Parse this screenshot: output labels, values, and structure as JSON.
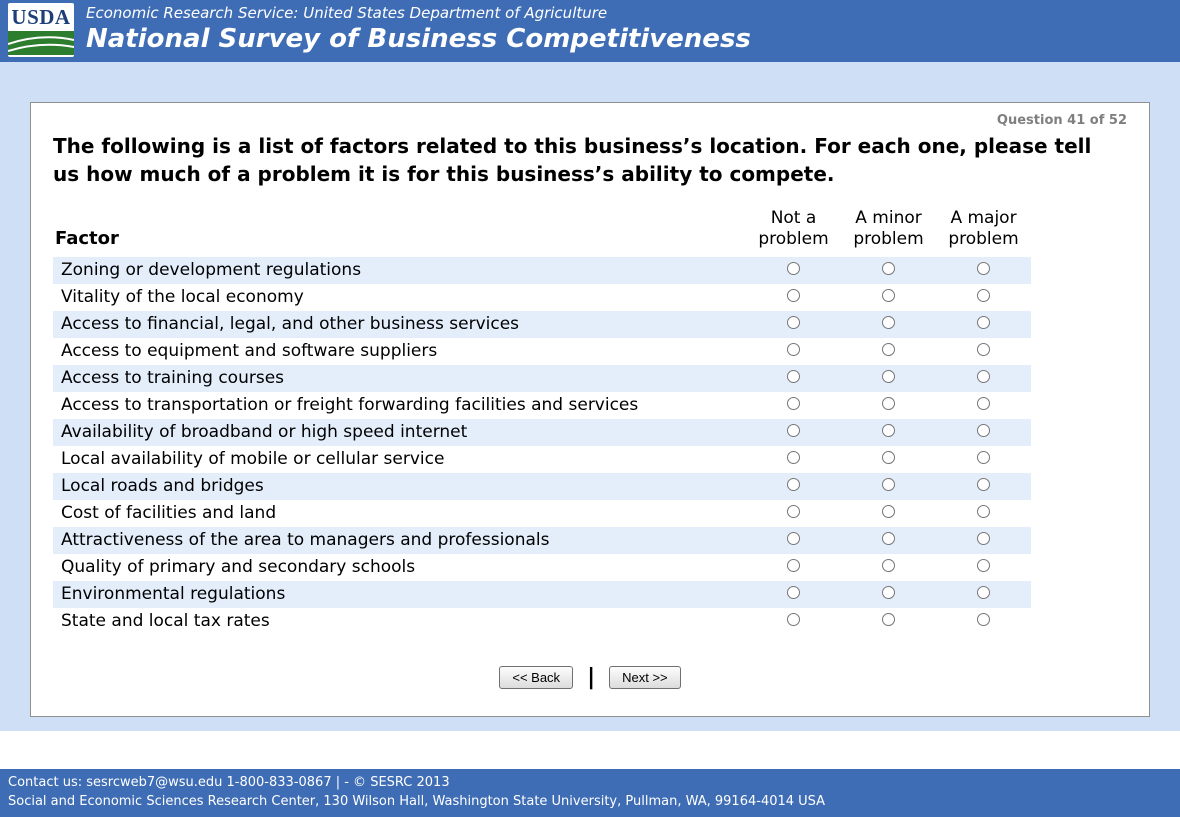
{
  "header": {
    "logo_text": "USDA",
    "agency_line": "Economic Research Service: United States Department of Agriculture",
    "title": "National Survey of Business Competitiveness"
  },
  "survey": {
    "question_counter": "Question 41 of 52",
    "question_text": "The following is a list of factors related to this business’s location. For each one, please tell us how much of a problem it is for this business’s ability to compete.",
    "factor_column_header": "Factor",
    "options": [
      "Not a problem",
      "A minor problem",
      "A major problem"
    ],
    "factors": [
      "Zoning or development regulations",
      "Vitality of the local economy",
      "Access to financial, legal, and other business services",
      "Access to equipment and software suppliers",
      "Access to training courses",
      "Access to transportation or freight forwarding facilities and services",
      "Availability of broadband or high speed internet",
      "Local availability of mobile or cellular service",
      "Local roads and bridges",
      "Cost of facilities and land",
      "Attractiveness of the area to managers and professionals",
      "Quality of primary and secondary schools",
      "Environmental regulations",
      "State and local tax rates"
    ]
  },
  "buttons": {
    "back": "<< Back",
    "separator": "|",
    "next": "Next >>"
  },
  "footer": {
    "line1": "Contact us: sesrcweb7@wsu.edu 1-800-833-0867 | - © SESRC 2013",
    "line2": "Social and Economic Sciences Research Center, 130 Wilson Hall, Washington State University, Pullman, WA, 99164-4014 USA"
  },
  "colors": {
    "header_bar": "#3e6db5",
    "page_band": "#cfe0f6",
    "row_stripe": "#e4eefb",
    "logo_green": "#2d7d2f",
    "logo_text_color": "#1f3f77"
  }
}
